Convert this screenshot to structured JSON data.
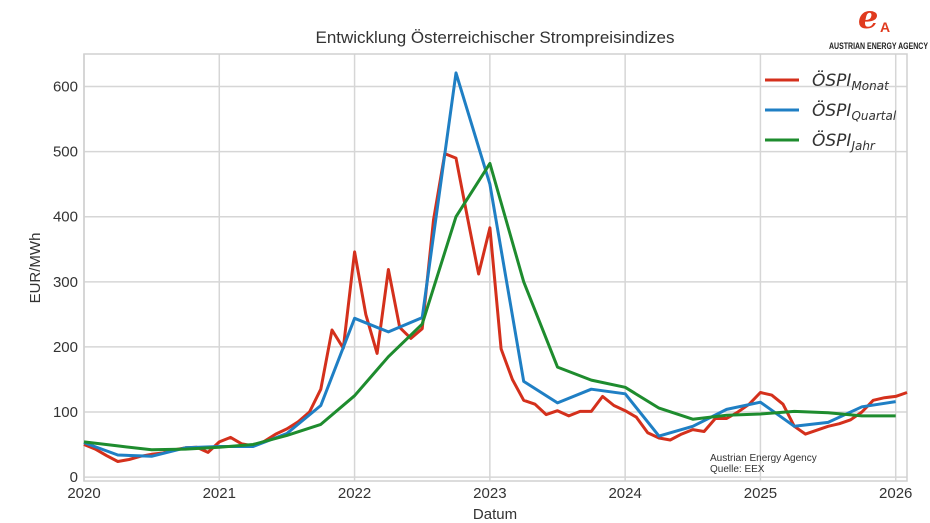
{
  "logo": {
    "text": "AUSTRIAN ENERGY AGENCY",
    "color": "#e03a1e"
  },
  "chart_data": {
    "type": "line",
    "title": "Entwicklung Österreichischer Strompreisindizes",
    "xlabel": "Datum",
    "ylabel": "EUR/MWh",
    "xlim": [
      "2020-01",
      "2026-02"
    ],
    "ylim": [
      -6,
      650
    ],
    "xticks": [
      "2020",
      "2021",
      "2022",
      "2023",
      "2024",
      "2025",
      "2026"
    ],
    "yticks": [
      0,
      100,
      200,
      300,
      400,
      500,
      600
    ],
    "grid": true,
    "legend_position": "top-right",
    "annotation": [
      "Austrian Energy Agency",
      "Quelle: EEX"
    ],
    "series": [
      {
        "name": "ÖSPI",
        "subscript": "Monat",
        "color": "#d4301c",
        "x": [
          "2020-01",
          "2020-02",
          "2020-03",
          "2020-04",
          "2020-05",
          "2020-06",
          "2020-07",
          "2020-08",
          "2020-09",
          "2020-10",
          "2020-11",
          "2020-12",
          "2021-01",
          "2021-02",
          "2021-03",
          "2021-04",
          "2021-05",
          "2021-06",
          "2021-07",
          "2021-08",
          "2021-09",
          "2021-10",
          "2021-11",
          "2021-12",
          "2022-01",
          "2022-02",
          "2022-03",
          "2022-04",
          "2022-05",
          "2022-06",
          "2022-07",
          "2022-08",
          "2022-09",
          "2022-10",
          "2022-11",
          "2022-12",
          "2023-01",
          "2023-02",
          "2023-03",
          "2023-04",
          "2023-05",
          "2023-06",
          "2023-07",
          "2023-08",
          "2023-09",
          "2023-10",
          "2023-11",
          "2023-12",
          "2024-01",
          "2024-02",
          "2024-03",
          "2024-04",
          "2024-05",
          "2024-06",
          "2024-07",
          "2024-08",
          "2024-09",
          "2024-10",
          "2024-11",
          "2024-12",
          "2025-01",
          "2025-02",
          "2025-03",
          "2025-04",
          "2025-05",
          "2025-06",
          "2025-07",
          "2025-08",
          "2025-09",
          "2025-10",
          "2025-11",
          "2025-12",
          "2026-01",
          "2026-02"
        ],
        "y": [
          50,
          43,
          33,
          24,
          27,
          32,
          35,
          37,
          42,
          45,
          46,
          38,
          54,
          61,
          51,
          48,
          55,
          66,
          74,
          85,
          100,
          135,
          226,
          198,
          346,
          250,
          190,
          319,
          230,
          213,
          228,
          395,
          497,
          490,
          400,
          312,
          383,
          197,
          150,
          118,
          112,
          96,
          102,
          94,
          101,
          101,
          124,
          110,
          102,
          92,
          68,
          60,
          57,
          66,
          73,
          70,
          90,
          90,
          100,
          112,
          130,
          126,
          112,
          78,
          66,
          72,
          78,
          82,
          88,
          100,
          118,
          122,
          124,
          130
        ]
      },
      {
        "name": "ÖSPI",
        "subscript": "Quartal",
        "color": "#1f7fc4",
        "x": [
          "2020-01",
          "2020-04",
          "2020-07",
          "2020-10",
          "2021-01",
          "2021-04",
          "2021-07",
          "2021-10",
          "2022-01",
          "2022-04",
          "2022-07",
          "2022-10",
          "2023-01",
          "2023-04",
          "2023-07",
          "2023-10",
          "2024-01",
          "2024-04",
          "2024-07",
          "2024-10",
          "2025-01",
          "2025-04",
          "2025-07",
          "2025-10",
          "2026-01"
        ],
        "y": [
          53,
          34,
          32,
          45,
          47,
          47,
          67,
          110,
          244,
          223,
          245,
          621,
          450,
          147,
          114,
          135,
          128,
          63,
          78,
          104,
          115,
          78,
          84,
          108,
          116
        ]
      },
      {
        "name": "ÖSPI",
        "subscript": "Jahr",
        "color": "#1e8c2e",
        "x": [
          "2020-01",
          "2020-04",
          "2020-07",
          "2020-10",
          "2021-01",
          "2021-04",
          "2021-07",
          "2021-10",
          "2022-01",
          "2022-04",
          "2022-07",
          "2022-10",
          "2023-01",
          "2023-04",
          "2023-07",
          "2023-10",
          "2024-01",
          "2024-04",
          "2024-07",
          "2024-10",
          "2025-01",
          "2025-04",
          "2025-07",
          "2025-10",
          "2026-01"
        ],
        "y": [
          54,
          48,
          42,
          43,
          46,
          50,
          64,
          81,
          125,
          185,
          235,
          400,
          482,
          300,
          169,
          149,
          138,
          106,
          89,
          95,
          97,
          101,
          99,
          94,
          94
        ]
      }
    ]
  }
}
